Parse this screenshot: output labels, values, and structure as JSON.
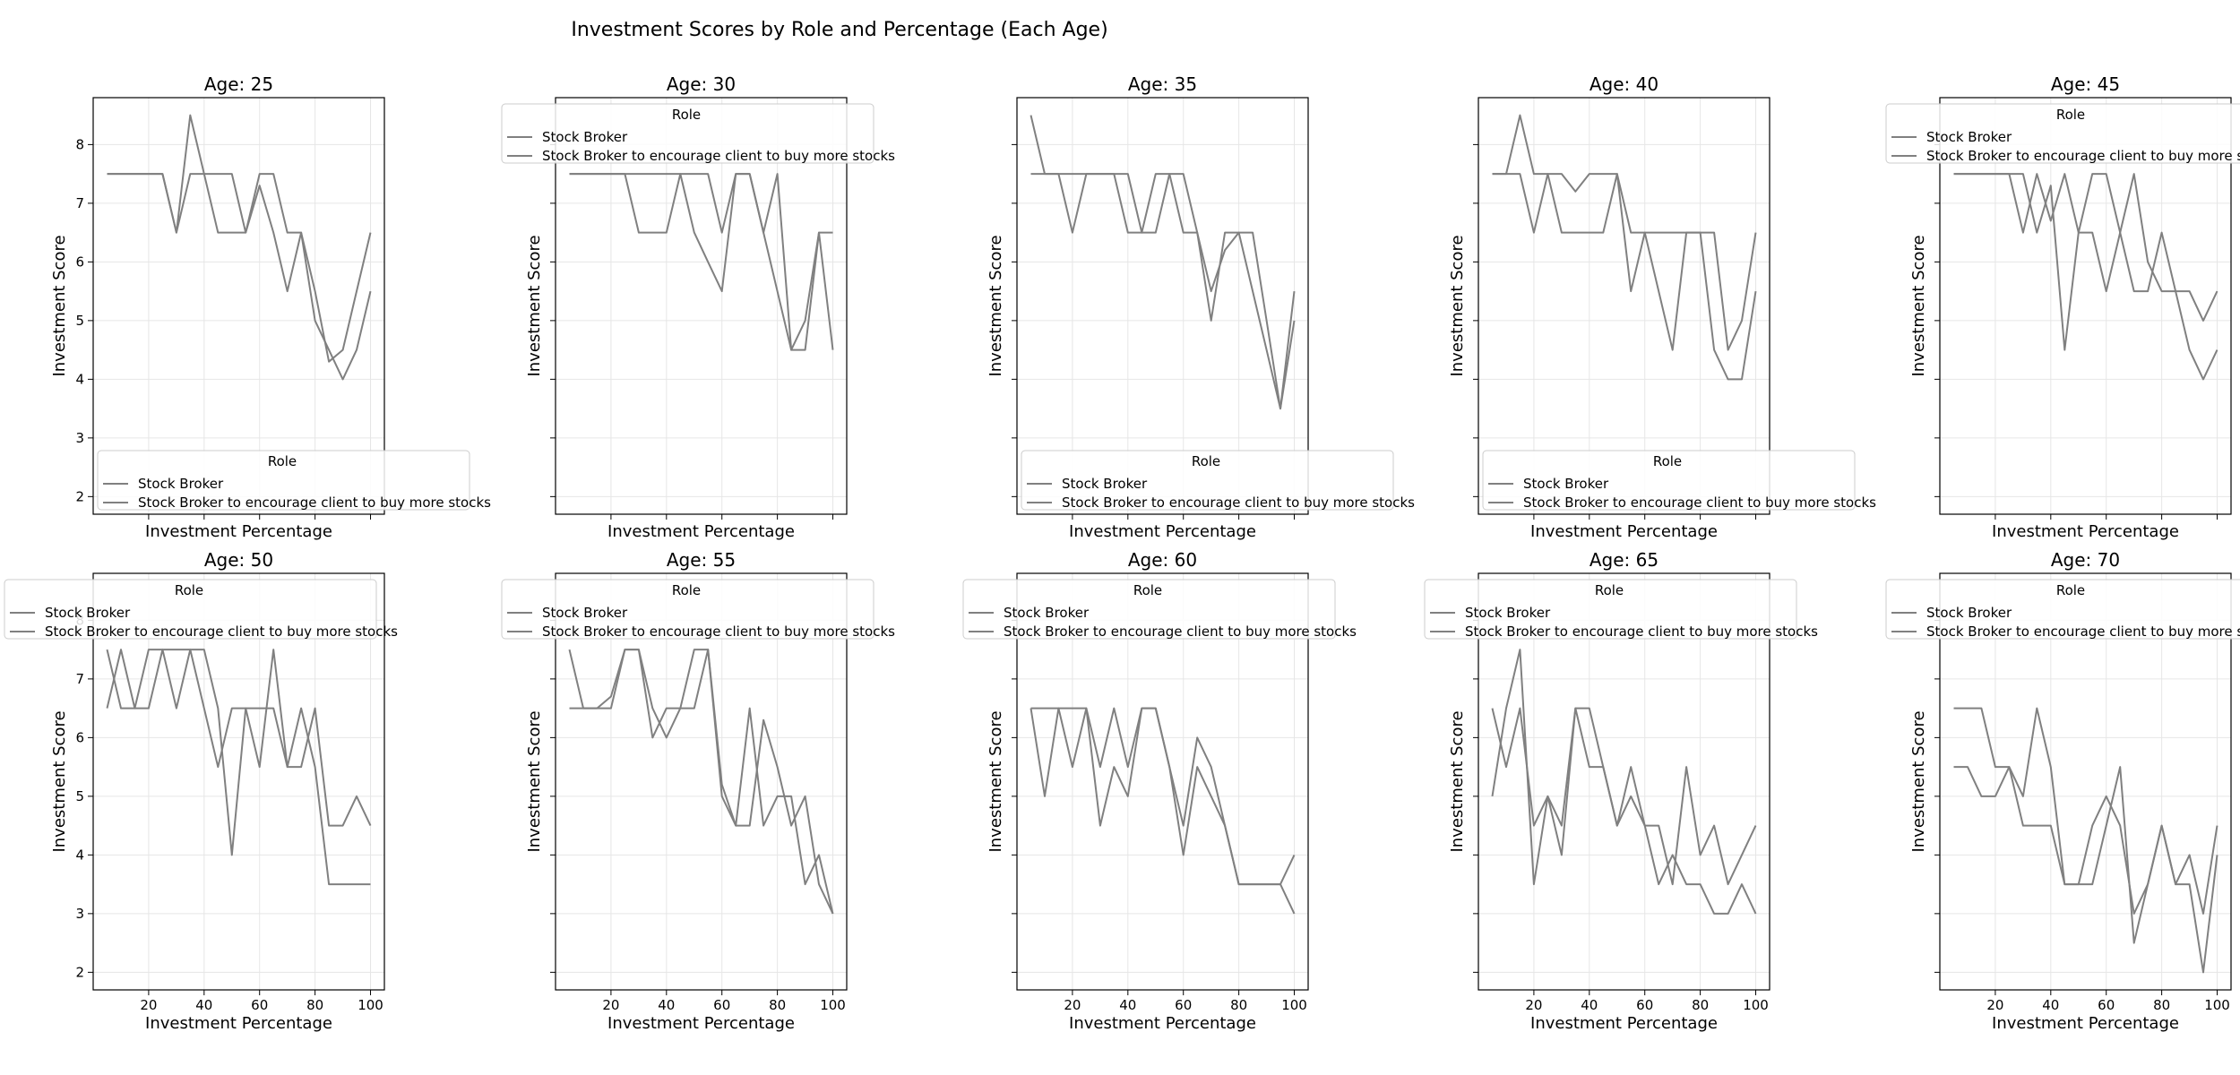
{
  "figure": {
    "title": "Investment Scores by Role and Percentage (Each Age)",
    "line_color": "#808080",
    "grid_color": "#e6e6e6"
  },
  "chart_data": {
    "type": "line",
    "x": [
      5,
      10,
      15,
      20,
      25,
      30,
      35,
      40,
      45,
      50,
      55,
      60,
      65,
      70,
      75,
      80,
      85,
      90,
      95,
      100
    ],
    "xlabel": "Investment Percentage",
    "ylabel": "Investment Score",
    "xticks": [
      20,
      40,
      60,
      80,
      100
    ],
    "yticks": [
      2,
      3,
      4,
      5,
      6,
      7,
      8
    ],
    "xlim": [
      0,
      105
    ],
    "ylim": [
      1.7,
      8.8
    ],
    "grid": true,
    "legend_title": "Role",
    "legend_entries": [
      "Stock Broker",
      "Stock Broker to encourage client to buy more stocks"
    ],
    "panels": [
      {
        "title": "Age: 25",
        "legend": "bottom-left",
        "series": [
          {
            "name": "Stock Broker",
            "values": [
              7.5,
              7.5,
              7.5,
              7.5,
              7.5,
              6.5,
              8.5,
              7.5,
              7.5,
              7.5,
              6.5,
              7.5,
              7.5,
              6.5,
              6.5,
              5,
              4.5,
              4,
              4.5,
              5.5
            ]
          },
          {
            "name": "Stock Broker to encourage client to buy more stocks",
            "values": [
              7.5,
              7.5,
              7.5,
              7.5,
              7.5,
              6.5,
              7.5,
              7.5,
              6.5,
              6.5,
              6.5,
              7.3,
              6.5,
              5.5,
              6.5,
              5.5,
              4.3,
              4.5,
              5.5,
              6.5
            ]
          }
        ]
      },
      {
        "title": "Age: 30",
        "legend": "top-left",
        "series": [
          {
            "name": "Stock Broker",
            "values": [
              7.5,
              7.5,
              7.5,
              7.5,
              7.5,
              7.5,
              7.5,
              7.5,
              7.5,
              7.5,
              7.5,
              6.5,
              7.5,
              7.5,
              6.5,
              7.5,
              4.5,
              5,
              6.5,
              6.5
            ]
          },
          {
            "name": "Stock Broker to encourage client to buy more stocks",
            "values": [
              7.5,
              7.5,
              7.5,
              7.5,
              7.5,
              6.5,
              6.5,
              6.5,
              7.5,
              6.5,
              6,
              5.5,
              7.5,
              7.5,
              6.5,
              5.5,
              4.5,
              4.5,
              6.5,
              4.5
            ]
          }
        ]
      },
      {
        "title": "Age: 35",
        "legend": "bottom-left",
        "series": [
          {
            "name": "Stock Broker",
            "values": [
              8.5,
              7.5,
              7.5,
              6.5,
              7.5,
              7.5,
              7.5,
              7.5,
              6.5,
              7.5,
              7.5,
              6.5,
              6.5,
              5,
              6.5,
              6.5,
              5.5,
              4.5,
              3.5,
              5.5
            ]
          },
          {
            "name": "Stock Broker to encourage client to buy more stocks",
            "values": [
              7.5,
              7.5,
              7.5,
              7.5,
              7.5,
              7.5,
              7.5,
              6.5,
              6.5,
              6.5,
              7.5,
              7.5,
              6.5,
              5.5,
              6.2,
              6.5,
              6.5,
              5.0,
              3.5,
              5
            ]
          }
        ]
      },
      {
        "title": "Age: 40",
        "legend": "bottom-left",
        "series": [
          {
            "name": "Stock Broker",
            "values": [
              7.5,
              7.5,
              8.5,
              7.5,
              7.5,
              7.5,
              7.2,
              7.5,
              7.5,
              7.5,
              6.5,
              6.5,
              6.5,
              6.5,
              6.5,
              6.5,
              6.5,
              4.5,
              5,
              6.5
            ]
          },
          {
            "name": "Stock Broker to encourage client to buy more stocks",
            "values": [
              7.5,
              7.5,
              7.5,
              6.5,
              7.5,
              6.5,
              6.5,
              6.5,
              6.5,
              7.5,
              5.5,
              6.5,
              5.5,
              4.5,
              6.5,
              6.5,
              4.5,
              4,
              4,
              5.5
            ]
          }
        ]
      },
      {
        "title": "Age: 45",
        "legend": "top-left",
        "series": [
          {
            "name": "Stock Broker",
            "values": [
              7.5,
              7.5,
              7.5,
              7.5,
              7.5,
              6.5,
              7.5,
              6.7,
              7.5,
              6.5,
              7.5,
              7.5,
              6.5,
              7.5,
              6,
              5.5,
              5.5,
              5.5,
              5,
              5.5
            ]
          },
          {
            "name": "Stock Broker to encourage client to buy more stocks",
            "values": [
              7.5,
              7.5,
              7.5,
              7.5,
              7.5,
              7.5,
              6.5,
              7.3,
              4.5,
              6.5,
              6.5,
              5.5,
              6.5,
              5.5,
              5.5,
              6.5,
              5.5,
              4.5,
              4,
              4.5
            ]
          }
        ]
      },
      {
        "title": "Age: 50",
        "legend": "top-left",
        "series": [
          {
            "name": "Stock Broker",
            "values": [
              7.5,
              6.5,
              6.5,
              7.5,
              7.5,
              7.5,
              7.5,
              7.5,
              6.5,
              4,
              6.5,
              6.5,
              6.5,
              5.5,
              5.5,
              6.5,
              4.5,
              4.5,
              5,
              4.5
            ]
          },
          {
            "name": "Stock Broker to encourage client to buy more stocks",
            "values": [
              6.5,
              7.5,
              6.5,
              6.5,
              7.5,
              6.5,
              7.5,
              6.5,
              5.5,
              6.5,
              6.5,
              5.5,
              7.5,
              5.5,
              6.5,
              5.5,
              3.5,
              3.5,
              3.5,
              3.5
            ]
          }
        ]
      },
      {
        "title": "Age: 55",
        "legend": "top-left",
        "series": [
          {
            "name": "Stock Broker",
            "values": [
              7.5,
              6.5,
              6.5,
              6.7,
              7.5,
              7.5,
              6,
              6.5,
              6.5,
              6.5,
              7.5,
              5,
              4.5,
              6.5,
              4.5,
              5,
              5,
              3.5,
              4,
              3
            ]
          },
          {
            "name": "Stock Broker to encourage client to buy more stocks",
            "values": [
              6.5,
              6.5,
              6.5,
              6.5,
              7.5,
              7.5,
              6.5,
              6,
              6.5,
              7.5,
              7.5,
              5.2,
              4.5,
              4.5,
              6.3,
              5.5,
              4.5,
              5,
              3.5,
              3
            ]
          }
        ]
      },
      {
        "title": "Age: 60",
        "legend": "top-left",
        "series": [
          {
            "name": "Stock Broker",
            "values": [
              6.5,
              5,
              6.5,
              6.5,
              6.5,
              4.5,
              5.5,
              5,
              6.5,
              6.5,
              5.5,
              4,
              5.5,
              5,
              4.5,
              3.5,
              3.5,
              3.5,
              3.5,
              4
            ]
          },
          {
            "name": "Stock Broker to encourage client to buy more stocks",
            "values": [
              6.5,
              6.5,
              6.5,
              5.5,
              6.5,
              5.5,
              6.5,
              5.5,
              6.5,
              6.5,
              5.5,
              4.5,
              6,
              5.5,
              4.5,
              3.5,
              3.5,
              3.5,
              3.5,
              3
            ]
          }
        ]
      },
      {
        "title": "Age: 65",
        "legend": "top-left",
        "series": [
          {
            "name": "Stock Broker",
            "values": [
              6.5,
              5.5,
              6.5,
              4.5,
              5,
              4,
              6.5,
              5.5,
              5.5,
              4.5,
              5.5,
              4.5,
              4.5,
              3.5,
              5.5,
              4,
              4.5,
              3.5,
              4,
              4.5
            ]
          },
          {
            "name": "Stock Broker to encourage client to buy more stocks",
            "values": [
              5,
              6.5,
              7.5,
              3.5,
              5,
              4.5,
              6.5,
              6.5,
              5.5,
              4.5,
              5,
              4.5,
              3.5,
              4,
              3.5,
              3.5,
              3,
              3,
              3.5,
              3
            ]
          }
        ]
      },
      {
        "title": "Age: 70",
        "legend": "top-left",
        "series": [
          {
            "name": "Stock Broker",
            "values": [
              6.5,
              6.5,
              6.5,
              5.5,
              5.5,
              4.5,
              4.5,
              4.5,
              3.5,
              3.5,
              3.5,
              4.5,
              5.5,
              2.5,
              3.5,
              4.5,
              3.5,
              4,
              3,
              4.5
            ]
          },
          {
            "name": "Stock Broker to encourage client to buy more stocks",
            "values": [
              5.5,
              5.5,
              5,
              5,
              5.5,
              5,
              6.5,
              5.5,
              3.5,
              3.5,
              4.5,
              5,
              4.5,
              3,
              3.5,
              4.5,
              3.5,
              3.5,
              2,
              4
            ]
          }
        ]
      }
    ]
  }
}
